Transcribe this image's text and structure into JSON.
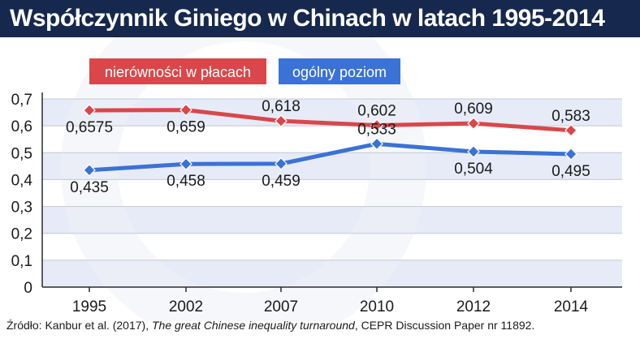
{
  "title": "Współczynnik Giniego w Chinach w latach 1995-2014",
  "source": {
    "prefix": "Źródło: Kanbur et al. (2017), ",
    "publication": "The great Chinese inequality turnaround",
    "suffix": ", CEPR Discussion Paper nr 11892."
  },
  "colors": {
    "title_bar": "#16284d",
    "series_wages": "#d9474b",
    "series_overall": "#3a72d6",
    "band": "#e6ebf7"
  },
  "chart_data": {
    "type": "line",
    "x": [
      "1995",
      "2002",
      "2007",
      "2010",
      "2012",
      "2014"
    ],
    "ylim": [
      0,
      0.7
    ],
    "yticks": [
      "0",
      "0,1",
      "0,2",
      "0,3",
      "0,4",
      "0,5",
      "0,6",
      "0,7"
    ],
    "grid": true,
    "legend_position": "top-left",
    "series": [
      {
        "name": "nierówności w płacach",
        "values": [
          0.6575,
          0.659,
          0.618,
          0.602,
          0.609,
          0.583
        ],
        "labels": [
          "0,6575",
          "0,659",
          "0,618",
          "0,602",
          "0,609",
          "0,583"
        ],
        "marker": "diamond"
      },
      {
        "name": "ogólny poziom",
        "values": [
          0.435,
          0.458,
          0.459,
          0.533,
          0.504,
          0.495
        ],
        "labels": [
          "0,435",
          "0,458",
          "0,459",
          "0,533",
          "0,504",
          "0,495"
        ],
        "marker": "diamond"
      }
    ]
  }
}
